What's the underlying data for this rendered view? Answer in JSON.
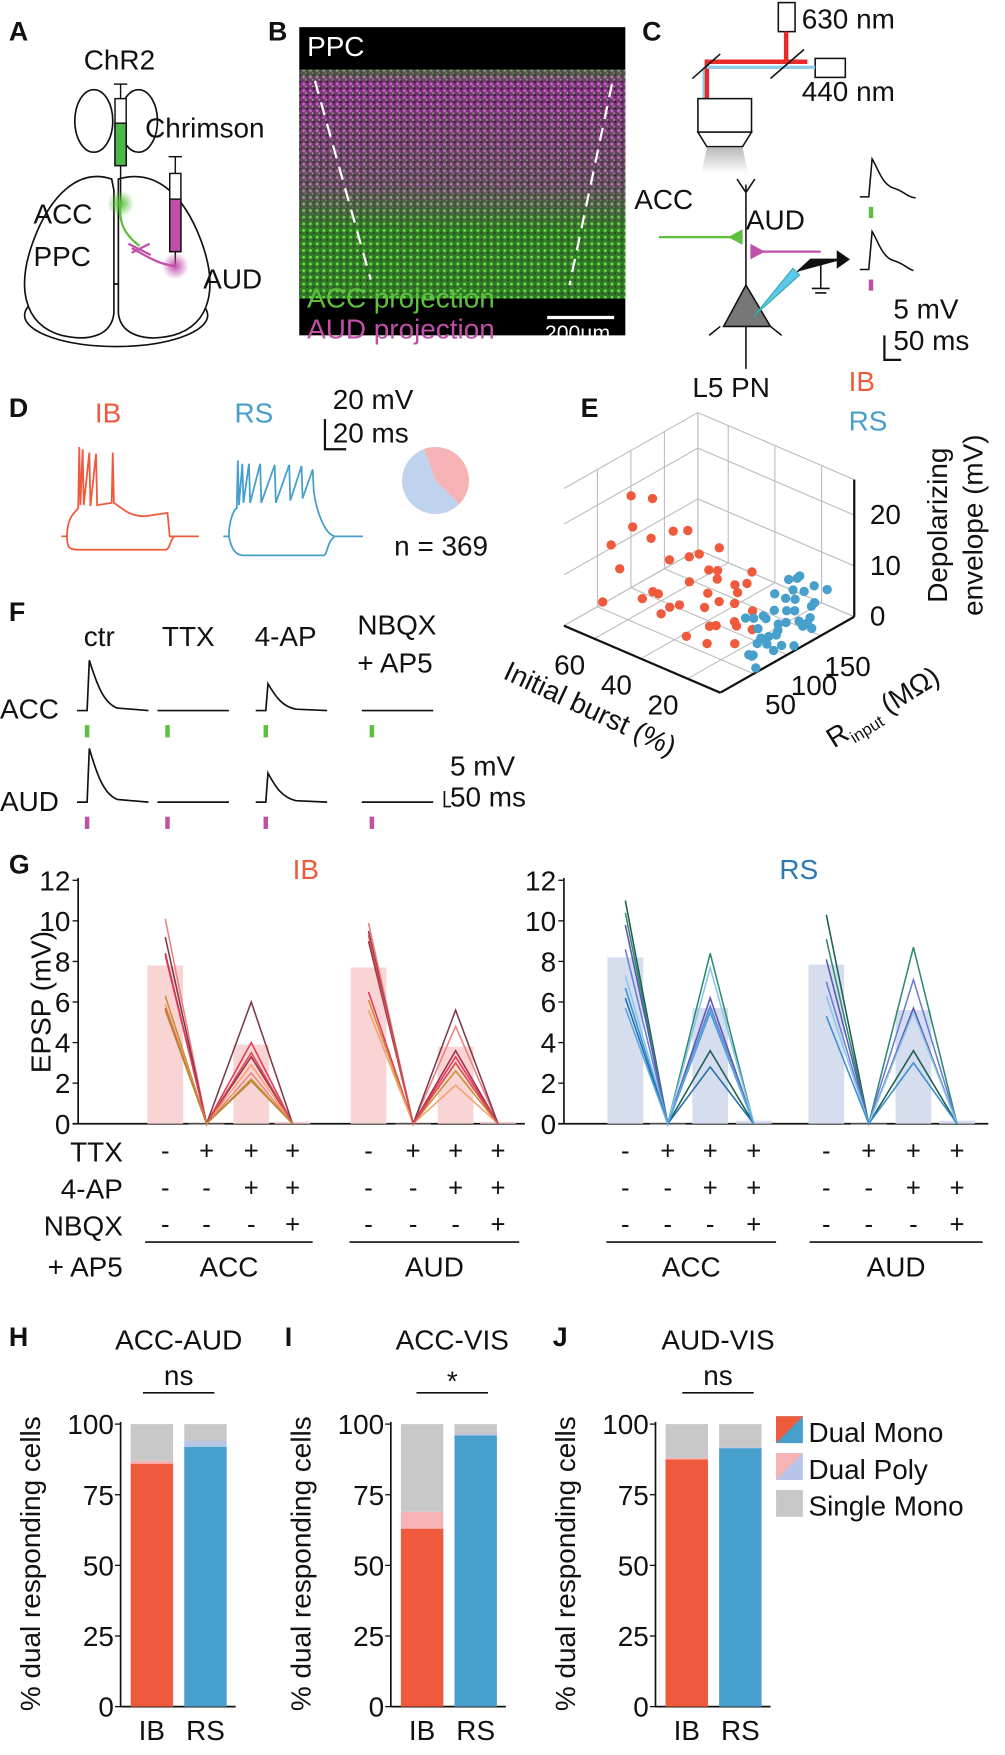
{
  "colors": {
    "ib": "#f05a3c",
    "rs": "#479fcb",
    "acc": "#5cbf3e",
    "aud": "#c04fa8",
    "ib_bar": "#f9d4d4",
    "rs_bar": "#d6ddef",
    "single": "#c8c8c8",
    "poly_ib": "#f6b3b6",
    "poly_rs": "#b7c5e8"
  },
  "panelA": {
    "label": "A",
    "chr2": "ChR2",
    "chrimson": "Chrimson",
    "acc": "ACC",
    "ppc": "PPC",
    "aud": "AUD"
  },
  "panelB": {
    "label": "B",
    "region": "PPC",
    "acc_proj": "ACC projection",
    "aud_proj": "AUD projection",
    "scale": "200µm"
  },
  "panelC": {
    "label": "C",
    "laser1": "630 nm",
    "laser2": "440 nm",
    "acc": "ACC",
    "aud": "AUD",
    "cell": "L5 PN",
    "scale_v": "5 mV",
    "scale_t": "50 ms"
  },
  "panelD": {
    "label": "D",
    "ib": "IB",
    "rs": "RS",
    "scale_v": "20 mV",
    "scale_t": "20 ms",
    "n": "n = 369"
  },
  "panelF": {
    "label": "F",
    "cols": [
      "ctr",
      "TTX",
      "4-AP",
      "NBQX",
      "+ AP5"
    ],
    "rows": [
      "ACC",
      "AUD"
    ],
    "scale_v": "5 mV",
    "scale_t": "50 ms"
  },
  "chart_data": [
    {
      "panel": "D-pie",
      "type": "pie",
      "slices": [
        {
          "name": "IB",
          "value": 43,
          "color": "#f5b3b5"
        },
        {
          "name": "RS",
          "value": 57,
          "color": "#c0d3ee"
        }
      ]
    },
    {
      "panel": "E",
      "label": "E",
      "type": "scatter3d",
      "legend": [
        "IB",
        "RS"
      ],
      "legend_placement": "top-right",
      "x_label": "Initial burst (%)",
      "x_ticks": [
        20,
        40,
        60
      ],
      "x_range": [
        6,
        73
      ],
      "y_label_main": "R",
      "y_label_sub": "input",
      "y_label_unit": " (MΩ)",
      "y_ticks": [
        50,
        100,
        150
      ],
      "y_range": [
        0,
        200
      ],
      "z_label": [
        "Depolarizing",
        "envelope (mV)"
      ],
      "z_ticks": [
        0,
        10,
        20
      ],
      "z_range": [
        0,
        27
      ],
      "grid": true,
      "series": [
        {
          "name": "IB",
          "points": [
            [
              70,
              60,
              12
            ],
            [
              55,
              40,
              20
            ],
            [
              60,
              55,
              24
            ],
            [
              50,
              50,
              18
            ],
            [
              45,
              60,
              14
            ],
            [
              58,
              80,
              22
            ],
            [
              40,
              70,
              20
            ],
            [
              52,
              90,
              16
            ],
            [
              48,
              30,
              8
            ],
            [
              62,
              45,
              10
            ],
            [
              35,
              55,
              12
            ],
            [
              38,
              80,
              15
            ],
            [
              30,
              65,
              10
            ],
            [
              42,
              50,
              6
            ],
            [
              33,
              90,
              12
            ],
            [
              28,
              75,
              8
            ],
            [
              25,
              60,
              5
            ],
            [
              36,
              100,
              9
            ],
            [
              27,
              95,
              10
            ],
            [
              22,
              80,
              4
            ],
            [
              45,
              75,
              4
            ],
            [
              50,
              65,
              2
            ],
            [
              32,
              40,
              3
            ],
            [
              20,
              70,
              6
            ],
            [
              24,
              110,
              12
            ],
            [
              30,
              105,
              5
            ],
            [
              18,
              90,
              7
            ],
            [
              40,
              95,
              3
            ],
            [
              55,
              70,
              5
            ],
            [
              65,
              30,
              4
            ],
            [
              26,
              50,
              2
            ],
            [
              35,
              85,
              1
            ],
            [
              21,
              100,
              2
            ],
            [
              29,
              120,
              8
            ],
            [
              17,
              60,
              3
            ],
            [
              44,
              40,
              9
            ],
            [
              38,
              110,
              14
            ],
            [
              31,
              70,
              14
            ],
            [
              23,
              85,
              10
            ],
            [
              48,
              100,
              11
            ]
          ]
        },
        {
          "name": "RS",
          "points": [
            [
              12,
              120,
              6
            ],
            [
              15,
              140,
              8
            ],
            [
              10,
              150,
              5
            ],
            [
              8,
              130,
              3
            ],
            [
              18,
              110,
              4
            ],
            [
              14,
              100,
              2
            ],
            [
              20,
              130,
              7
            ],
            [
              9,
              90,
              1
            ],
            [
              16,
              160,
              6
            ],
            [
              11,
              115,
              9
            ],
            [
              13,
              85,
              3
            ],
            [
              7,
              140,
              2
            ],
            [
              19,
              95,
              5
            ],
            [
              6,
              110,
              1
            ],
            [
              17,
              125,
              2
            ],
            [
              12,
              70,
              1
            ],
            [
              10,
              100,
              4
            ],
            [
              22,
              120,
              3
            ],
            [
              15,
              150,
              10
            ],
            [
              9,
              170,
              7
            ],
            [
              14,
              75,
              0
            ],
            [
              8,
              60,
              0
            ],
            [
              18,
              140,
              1
            ],
            [
              11,
              135,
              3
            ],
            [
              20,
              105,
              2
            ],
            [
              13,
              165,
              4
            ],
            [
              16,
              90,
              1
            ],
            [
              10,
              125,
              6
            ],
            [
              7,
              95,
              2
            ],
            [
              12,
              155,
              2
            ],
            [
              21,
              90,
              5
            ],
            [
              15,
              115,
              1
            ],
            [
              9,
              80,
              3
            ],
            [
              17,
              150,
              5
            ],
            [
              6,
              130,
              4
            ],
            [
              14,
              130,
              11
            ],
            [
              19,
              160,
              8
            ],
            [
              11,
              60,
              2
            ],
            [
              13,
              105,
              7
            ],
            [
              16,
              175,
              6
            ]
          ]
        }
      ]
    },
    {
      "panel": "G",
      "label": "G",
      "type": "bar",
      "ylabel": "EPSP (mV)",
      "ylim": [
        0,
        12
      ],
      "yticks": [
        0,
        2,
        4,
        6,
        8,
        10,
        12
      ],
      "row_labels": [
        "TTX",
        "4-AP",
        "NBQX",
        "+ AP5"
      ],
      "conditions": {
        "TTX": [
          "-",
          "+",
          "+",
          "+"
        ],
        "4-AP": [
          "-",
          "-",
          "+",
          "+"
        ],
        "NBQX": [
          "-",
          "-",
          "-",
          "+"
        ]
      },
      "groups": [
        {
          "cell": "IB",
          "title": "IB",
          "pathways": [
            {
              "name": "ACC",
              "means": [
                7.8,
                0,
                3.9,
                0.1
              ],
              "cells": [
                [
                  10.1,
                  2.5
                ],
                [
                  9.2,
                  6.0
                ],
                [
                  8.4,
                  3.3
                ],
                [
                  8.3,
                  4.0
                ],
                [
                  6.3,
                  2.2
                ],
                [
                  5.9,
                  2.9
                ],
                [
                  5.7,
                  3.5
                ],
                [
                  5.6,
                  2.1
                ]
              ]
            },
            {
              "name": "AUD",
              "means": [
                7.7,
                0,
                3.8,
                0.1
              ],
              "cells": [
                [
                  9.9,
                  4.8
                ],
                [
                  9.5,
                  5.6
                ],
                [
                  9.0,
                  3.6
                ],
                [
                  6.5,
                  3.3
                ],
                [
                  6.1,
                  2.6
                ],
                [
                  5.6,
                  1.9
                ],
                [
                  9.3,
                  3.0
                ]
              ]
            }
          ]
        },
        {
          "cell": "RS",
          "title": "RS",
          "pathways": [
            {
              "name": "ACC",
              "means": [
                8.2,
                0,
                5.7,
                0.15
              ],
              "cells": [
                [
                  11.0,
                  3.6
                ],
                [
                  10.4,
                  8.4
                ],
                [
                  9.8,
                  6.2
                ],
                [
                  8.6,
                  5.8
                ],
                [
                  7.3,
                  7.7
                ],
                [
                  6.7,
                  5.5
                ],
                [
                  6.2,
                  2.8
                ],
                [
                  5.7,
                  5.6
                ]
              ]
            },
            {
              "name": "AUD",
              "means": [
                7.85,
                0,
                5.6,
                0.15
              ],
              "cells": [
                [
                  10.3,
                  3.6
                ],
                [
                  9.1,
                  8.7
                ],
                [
                  8.1,
                  5.7
                ],
                [
                  7.0,
                  7.1
                ],
                [
                  6.3,
                  5.5
                ],
                [
                  5.3,
                  3.0
                ]
              ]
            }
          ]
        }
      ]
    },
    {
      "panel": "H-J",
      "type": "stacked-bar",
      "ylabel": "% dual responding cells",
      "ylim": [
        0,
        100
      ],
      "yticks": [
        0,
        25,
        50,
        75,
        100
      ],
      "categories": [
        "IB",
        "RS"
      ],
      "legend": [
        "Dual Mono",
        "Dual Poly",
        "Single Mono"
      ],
      "legend_placement": "right",
      "panels": [
        {
          "label": "H",
          "title": "ACC-AUD",
          "sig": "ns",
          "dual_mono": [
            86,
            92
          ],
          "dual_poly": [
            1,
            2
          ],
          "single_mono": [
            13,
            6
          ]
        },
        {
          "label": "I",
          "title": "ACC-VIS",
          "sig": "*",
          "dual_mono": [
            63,
            96
          ],
          "dual_poly": [
            6,
            0.5
          ],
          "single_mono": [
            31,
            3.5
          ]
        },
        {
          "label": "J",
          "title": "AUD-VIS",
          "sig": "ns",
          "dual_mono": [
            87.5,
            91.5
          ],
          "dual_poly": [
            0.5,
            0.3
          ],
          "single_mono": [
            12,
            8.2
          ]
        }
      ]
    }
  ]
}
